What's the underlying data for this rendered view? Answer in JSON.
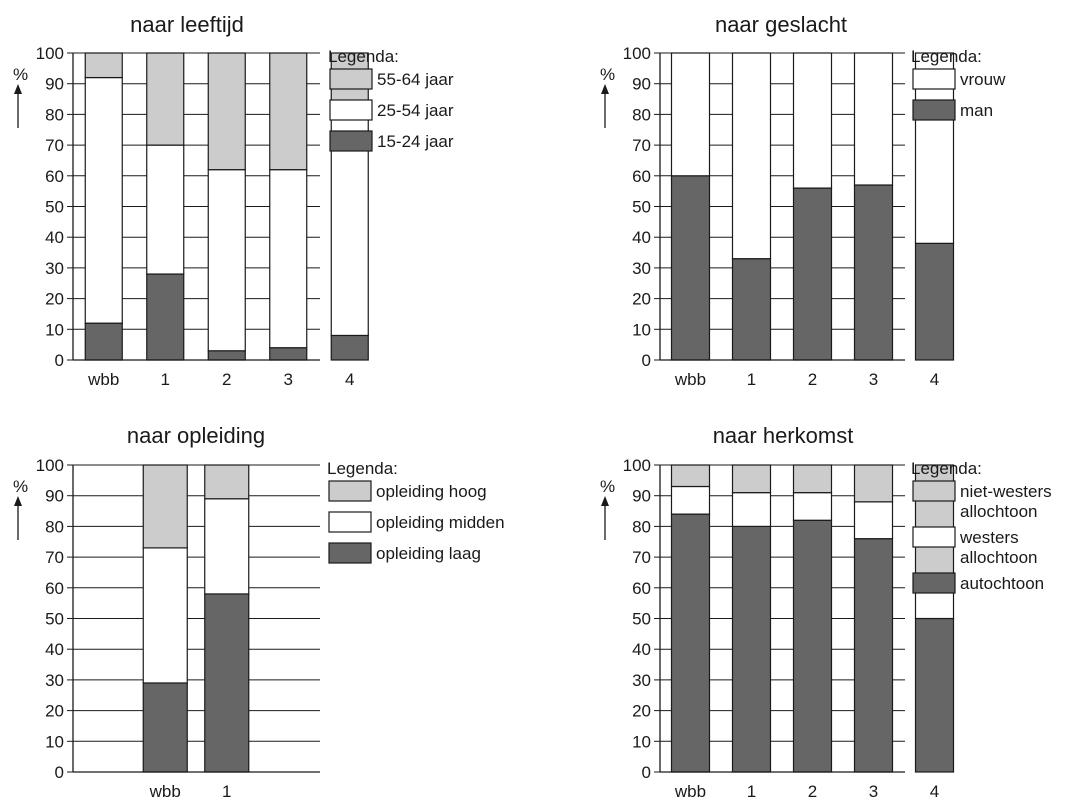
{
  "chart_data": [
    {
      "type": "bar",
      "stacked": true,
      "title": "naar leeftijd",
      "ylabel": "%",
      "ylim": [
        0,
        100
      ],
      "yticks": [
        0,
        10,
        20,
        30,
        40,
        50,
        60,
        70,
        80,
        90,
        100
      ],
      "grid": true,
      "categories": [
        "wbb",
        "1",
        "2",
        "3",
        "4"
      ],
      "legend_title": "Legenda:",
      "legend_placement": "right",
      "series": [
        {
          "name": "15-24 jaar",
          "color": "#666666",
          "values": [
            12,
            28,
            3,
            4,
            8
          ]
        },
        {
          "name": "25-54 jaar",
          "color": "#ffffff",
          "values": [
            80,
            42,
            59,
            58,
            72
          ]
        },
        {
          "name": "55-64 jaar",
          "color": "#cccccc",
          "values": [
            8,
            30,
            38,
            38,
            20
          ]
        }
      ]
    },
    {
      "type": "bar",
      "stacked": true,
      "title": "naar geslacht",
      "ylabel": "%",
      "ylim": [
        0,
        100
      ],
      "yticks": [
        0,
        10,
        20,
        30,
        40,
        50,
        60,
        70,
        80,
        90,
        100
      ],
      "grid": true,
      "categories": [
        "wbb",
        "1",
        "2",
        "3",
        "4"
      ],
      "legend_title": "Legenda:",
      "legend_placement": "right",
      "series": [
        {
          "name": "man",
          "color": "#666666",
          "values": [
            60,
            33,
            56,
            57,
            38
          ]
        },
        {
          "name": "vrouw",
          "color": "#ffffff",
          "values": [
            40,
            67,
            44,
            43,
            62
          ]
        }
      ]
    },
    {
      "type": "bar",
      "stacked": true,
      "title": "naar opleiding",
      "ylabel": "%",
      "ylim": [
        0,
        100
      ],
      "yticks": [
        0,
        10,
        20,
        30,
        40,
        50,
        60,
        70,
        80,
        90,
        100
      ],
      "grid": true,
      "categories": [
        "wbb",
        "1"
      ],
      "legend_title": "Legenda:",
      "legend_placement": "right",
      "series": [
        {
          "name": "opleiding laag",
          "color": "#666666",
          "values": [
            29,
            58
          ]
        },
        {
          "name": "opleiding midden",
          "color": "#ffffff",
          "values": [
            44,
            31
          ]
        },
        {
          "name": "opleiding hoog",
          "color": "#cccccc",
          "values": [
            27,
            11
          ]
        }
      ]
    },
    {
      "type": "bar",
      "stacked": true,
      "title": "naar herkomst",
      "ylabel": "%",
      "ylim": [
        0,
        100
      ],
      "yticks": [
        0,
        10,
        20,
        30,
        40,
        50,
        60,
        70,
        80,
        90,
        100
      ],
      "grid": true,
      "categories": [
        "wbb",
        "1",
        "2",
        "3",
        "4"
      ],
      "legend_title": "Legenda:",
      "legend_placement": "right",
      "series": [
        {
          "name": [
            "autochtoon"
          ],
          "color": "#666666",
          "values": [
            84,
            80,
            82,
            76,
            50
          ]
        },
        {
          "name": [
            "westers",
            "allochtoon"
          ],
          "color": "#ffffff",
          "values": [
            9,
            11,
            9,
            12,
            11
          ]
        },
        {
          "name": [
            "niet-westers",
            "allochtoon"
          ],
          "color": "#cccccc",
          "values": [
            7,
            9,
            9,
            12,
            39
          ]
        }
      ]
    }
  ]
}
